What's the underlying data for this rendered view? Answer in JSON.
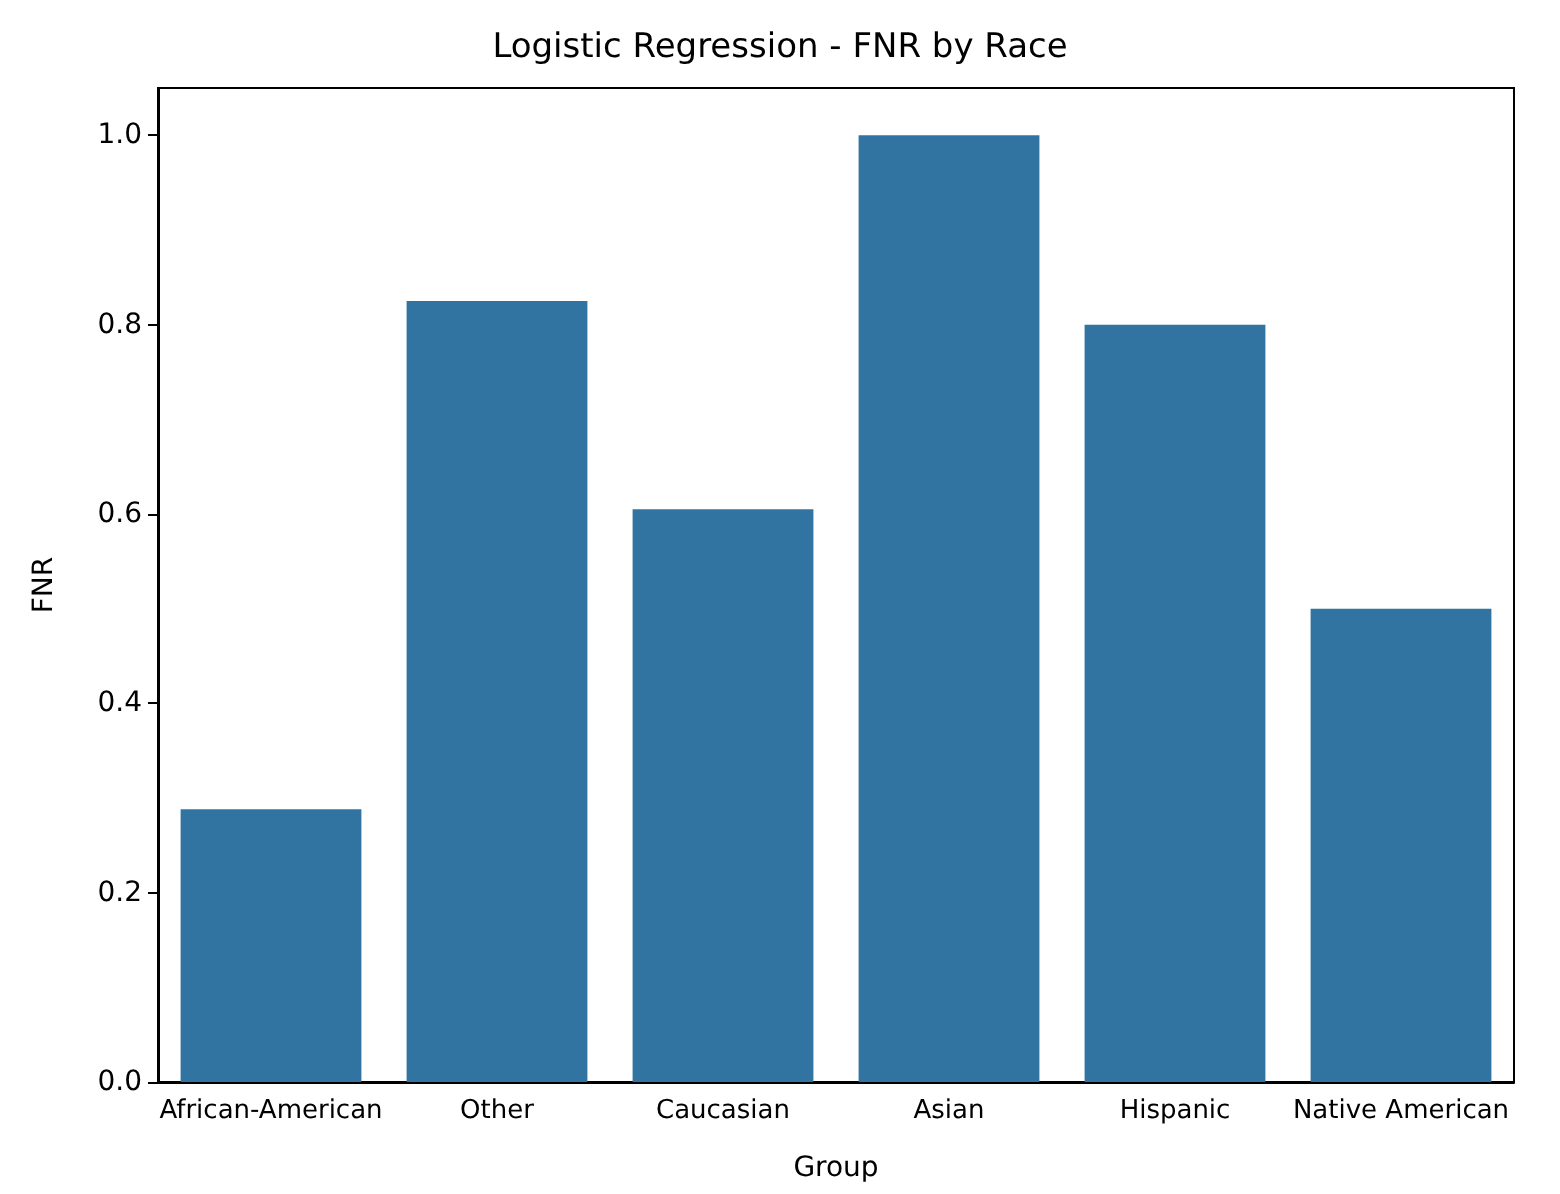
{
  "chart_data": {
    "type": "bar",
    "title": "Logistic Regression - FNR by Race",
    "xlabel": "Group",
    "ylabel": "FNR",
    "categories": [
      "African-American",
      "Other",
      "Caucasian",
      "Asian",
      "Hispanic",
      "Native American"
    ],
    "values": [
      0.288,
      0.825,
      0.605,
      1.0,
      0.8,
      0.5
    ],
    "color": "#3274a1",
    "ylim": [
      0,
      1.05
    ],
    "yticks": [
      {
        "value": 0,
        "label": "0.0"
      },
      {
        "value": 0.2,
        "label": "0.2"
      },
      {
        "value": 0.4,
        "label": "0.4"
      },
      {
        "value": 0.6,
        "label": "0.6"
      },
      {
        "value": 0.8,
        "label": "0.8"
      },
      {
        "value": 1.0,
        "label": "1.0"
      }
    ],
    "grid": false
  }
}
